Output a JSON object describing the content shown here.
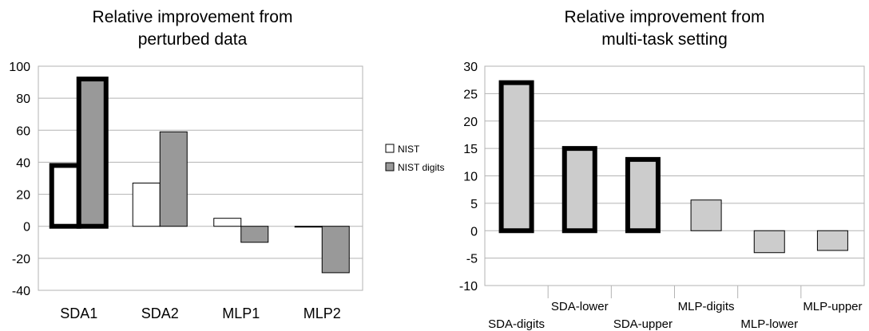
{
  "chart_data": [
    {
      "type": "bar",
      "title": [
        "Relative improvement from",
        "perturbed data"
      ],
      "categories": [
        "SDA1",
        "SDA2",
        "MLP1",
        "MLP2"
      ],
      "series": [
        {
          "name": "NIST",
          "values": [
            38,
            27,
            5,
            -0.5
          ],
          "color": "#ffffff"
        },
        {
          "name": "NIST digits",
          "values": [
            92,
            59,
            -10,
            -29
          ],
          "color": "#999999"
        }
      ],
      "highlighted_categories": [
        "SDA1"
      ],
      "ylim": [
        -40,
        100
      ],
      "yticks": [
        -40,
        -20,
        0,
        20,
        40,
        60,
        80,
        100
      ],
      "grid": true,
      "legend": "right"
    },
    {
      "type": "bar",
      "title": [
        "Relative improvement from",
        "multi-task setting"
      ],
      "categories": [
        "SDA-digits",
        "SDA-lower",
        "SDA-upper",
        "MLP-digits",
        "MLP-lower",
        "MLP-upper"
      ],
      "values": [
        27,
        15,
        13,
        5.6,
        -4,
        -3.6
      ],
      "highlighted": [
        true,
        true,
        true,
        false,
        false,
        false
      ],
      "color": "#cccccc",
      "ylim": [
        -10,
        30
      ],
      "yticks": [
        -10,
        -5,
        0,
        5,
        10,
        15,
        20,
        25,
        30
      ],
      "grid": true,
      "legend": "none"
    }
  ]
}
